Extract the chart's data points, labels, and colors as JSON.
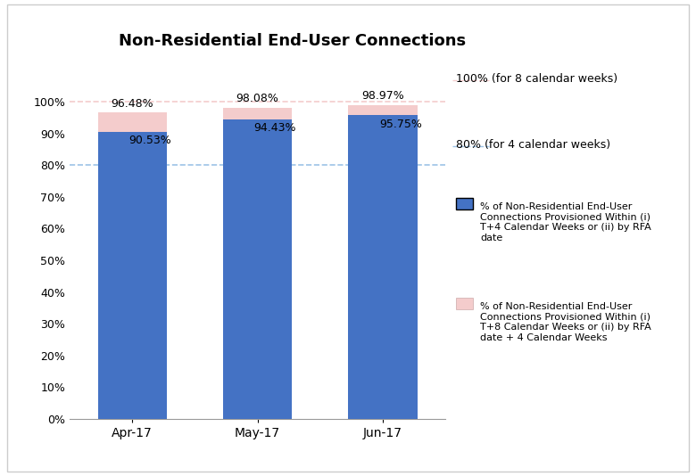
{
  "title": "Non-Residential End-User Connections",
  "categories": [
    "Apr-17",
    "May-17",
    "Jun-17"
  ],
  "values_4wk": [
    90.53,
    94.43,
    95.75
  ],
  "values_8wk_extra": [
    5.95,
    3.65,
    3.22
  ],
  "total_8wk": [
    96.48,
    98.08,
    98.97
  ],
  "color_4wk": "#4472C4",
  "color_8wk": "#F4CCCC",
  "target_4wk": 80,
  "target_8wk": 100,
  "target_4wk_color": "#9DC3E6",
  "target_8wk_color": "#F4CCCC",
  "legend_4wk": "% of Non-Residential End-User\nConnections Provisioned Within (i)\nT+4 Calendar Weeks or (ii) by RFA\ndate",
  "legend_8wk": "% of Non-Residential End-User\nConnections Provisioned Within (i)\nT+8 Calendar Weeks or (ii) by RFA\ndate + 4 Calendar Weeks",
  "label_100": "100% (for 8 calendar weeks)",
  "label_80": "80% (for 4 calendar weeks)",
  "yticks": [
    0,
    10,
    20,
    30,
    40,
    50,
    60,
    70,
    80,
    90,
    100
  ],
  "ytick_labels": [
    "0%",
    "10%",
    "20%",
    "30%",
    "40%",
    "50%",
    "60%",
    "70%",
    "80%",
    "90%",
    "100%"
  ]
}
